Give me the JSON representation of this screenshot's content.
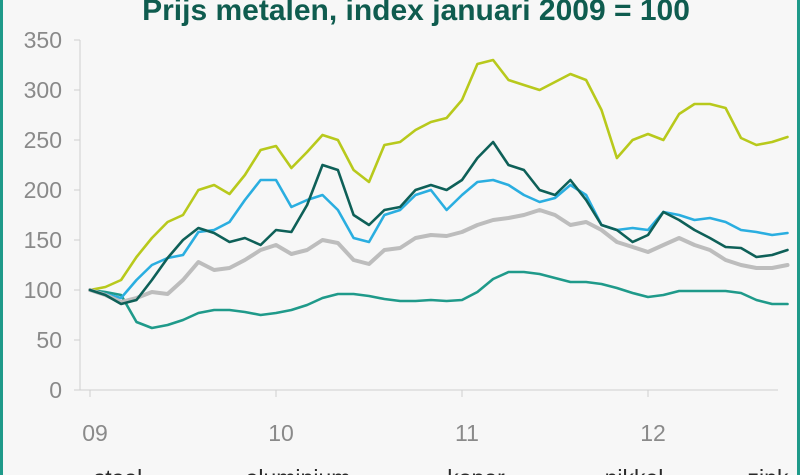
{
  "chart_data": {
    "type": "line",
    "title": "Prijs metalen, index januari 2009 = 100",
    "xlabel": "",
    "ylabel": "",
    "ylim": [
      0,
      350
    ],
    "yticks": [
      0,
      50,
      100,
      150,
      200,
      250,
      300,
      350
    ],
    "xlim": [
      2009,
      2012.75
    ],
    "xticks": [
      {
        "value": 2009,
        "label": "09"
      },
      {
        "value": 2010,
        "label": "10"
      },
      {
        "value": 2011,
        "label": "11"
      },
      {
        "value": 2012,
        "label": "12"
      }
    ],
    "legend_position": "bottom",
    "grid": false,
    "series": [
      {
        "name": "staal",
        "color": "#1f9a8a",
        "x": [
          2009.0,
          2009.083,
          2009.167,
          2009.25,
          2009.333,
          2009.417,
          2009.5,
          2009.583,
          2009.667,
          2009.75,
          2009.833,
          2009.917,
          2010.0,
          2010.083,
          2010.167,
          2010.25,
          2010.333,
          2010.417,
          2010.5,
          2010.583,
          2010.667,
          2010.75,
          2010.833,
          2010.917,
          2011.0,
          2011.083,
          2011.167,
          2011.25,
          2011.333,
          2011.417,
          2011.5,
          2011.583,
          2011.667,
          2011.75,
          2011.833,
          2011.917,
          2012.0,
          2012.083,
          2012.167,
          2012.25,
          2012.333,
          2012.417,
          2012.5,
          2012.583,
          2012.667,
          2012.75
        ],
        "values": [
          100,
          98,
          95,
          68,
          62,
          65,
          70,
          77,
          80,
          80,
          78,
          75,
          77,
          80,
          85,
          92,
          96,
          96,
          94,
          91,
          89,
          89,
          90,
          89,
          90,
          98,
          111,
          118,
          118,
          116,
          112,
          108,
          108,
          106,
          102,
          97,
          93,
          95,
          99,
          99,
          99,
          99,
          97,
          90,
          86,
          86
        ]
      },
      {
        "name": "aluminium",
        "color": "#b8c91c",
        "x": [
          2009.0,
          2009.083,
          2009.167,
          2009.25,
          2009.333,
          2009.417,
          2009.5,
          2009.583,
          2009.667,
          2009.75,
          2009.833,
          2009.917,
          2010.0,
          2010.083,
          2010.167,
          2010.25,
          2010.333,
          2010.417,
          2010.5,
          2010.583,
          2010.667,
          2010.75,
          2010.833,
          2010.917,
          2011.0,
          2011.083,
          2011.167,
          2011.25,
          2011.333,
          2011.417,
          2011.5,
          2011.583,
          2011.667,
          2011.75,
          2011.833,
          2011.917,
          2012.0,
          2012.083,
          2012.167,
          2012.25,
          2012.333,
          2012.417,
          2012.5,
          2012.583,
          2012.667,
          2012.75
        ],
        "values": [
          100,
          103,
          110,
          133,
          152,
          168,
          175,
          200,
          205,
          196,
          215,
          240,
          244,
          222,
          238,
          255,
          250,
          220,
          208,
          245,
          248,
          260,
          268,
          272,
          290,
          326,
          330,
          310,
          305,
          300,
          308,
          316,
          310,
          280,
          232,
          250,
          256,
          250,
          276,
          286,
          286,
          282,
          252,
          245,
          248,
          253
        ]
      },
      {
        "name": "koper",
        "color": "#0e6058",
        "x": [
          2009.0,
          2009.083,
          2009.167,
          2009.25,
          2009.333,
          2009.417,
          2009.5,
          2009.583,
          2009.667,
          2009.75,
          2009.833,
          2009.917,
          2010.0,
          2010.083,
          2010.167,
          2010.25,
          2010.333,
          2010.417,
          2010.5,
          2010.583,
          2010.667,
          2010.75,
          2010.833,
          2010.917,
          2011.0,
          2011.083,
          2011.167,
          2011.25,
          2011.333,
          2011.417,
          2011.5,
          2011.583,
          2011.667,
          2011.75,
          2011.833,
          2011.917,
          2012.0,
          2012.083,
          2012.167,
          2012.25,
          2012.333,
          2012.417,
          2012.5,
          2012.583,
          2012.667,
          2012.75
        ],
        "values": [
          100,
          95,
          86,
          90,
          110,
          132,
          150,
          162,
          157,
          148,
          152,
          145,
          160,
          158,
          185,
          225,
          220,
          175,
          165,
          180,
          183,
          200,
          205,
          200,
          210,
          232,
          248,
          225,
          220,
          200,
          195,
          210,
          190,
          165,
          160,
          148,
          155,
          178,
          170,
          160,
          152,
          143,
          142,
          133,
          135,
          140
        ]
      },
      {
        "name": "nikkel",
        "color": "#2aaee0",
        "x": [
          2009.0,
          2009.083,
          2009.167,
          2009.25,
          2009.333,
          2009.417,
          2009.5,
          2009.583,
          2009.667,
          2009.75,
          2009.833,
          2009.917,
          2010.0,
          2010.083,
          2010.167,
          2010.25,
          2010.333,
          2010.417,
          2010.5,
          2010.583,
          2010.667,
          2010.75,
          2010.833,
          2010.917,
          2011.0,
          2011.083,
          2011.167,
          2011.25,
          2011.333,
          2011.417,
          2011.5,
          2011.583,
          2011.667,
          2011.75,
          2011.833,
          2011.917,
          2012.0,
          2012.083,
          2012.167,
          2012.25,
          2012.333,
          2012.417,
          2012.5,
          2012.583,
          2012.667,
          2012.75
        ],
        "values": [
          100,
          96,
          92,
          110,
          125,
          132,
          135,
          158,
          160,
          168,
          190,
          210,
          210,
          183,
          190,
          195,
          180,
          152,
          148,
          175,
          180,
          195,
          200,
          180,
          195,
          208,
          210,
          205,
          195,
          188,
          192,
          205,
          195,
          165,
          160,
          162,
          160,
          178,
          175,
          170,
          172,
          168,
          160,
          158,
          155,
          157
        ]
      },
      {
        "name": "zink",
        "color": "#bdbdbd",
        "x": [
          2009.0,
          2009.083,
          2009.167,
          2009.25,
          2009.333,
          2009.417,
          2009.5,
          2009.583,
          2009.667,
          2009.75,
          2009.833,
          2009.917,
          2010.0,
          2010.083,
          2010.167,
          2010.25,
          2010.333,
          2010.417,
          2010.5,
          2010.583,
          2010.667,
          2010.75,
          2010.833,
          2010.917,
          2011.0,
          2011.083,
          2011.167,
          2011.25,
          2011.333,
          2011.417,
          2011.5,
          2011.583,
          2011.667,
          2011.75,
          2011.833,
          2011.917,
          2012.0,
          2012.083,
          2012.167,
          2012.25,
          2012.333,
          2012.417,
          2012.5,
          2012.583,
          2012.667,
          2012.75
        ],
        "values": [
          100,
          95,
          88,
          92,
          98,
          96,
          110,
          128,
          120,
          122,
          130,
          140,
          145,
          136,
          140,
          150,
          147,
          130,
          126,
          140,
          142,
          152,
          155,
          154,
          158,
          165,
          170,
          172,
          175,
          180,
          175,
          165,
          168,
          160,
          148,
          143,
          138,
          145,
          152,
          145,
          140,
          130,
          125,
          122,
          122,
          125
        ]
      }
    ]
  }
}
